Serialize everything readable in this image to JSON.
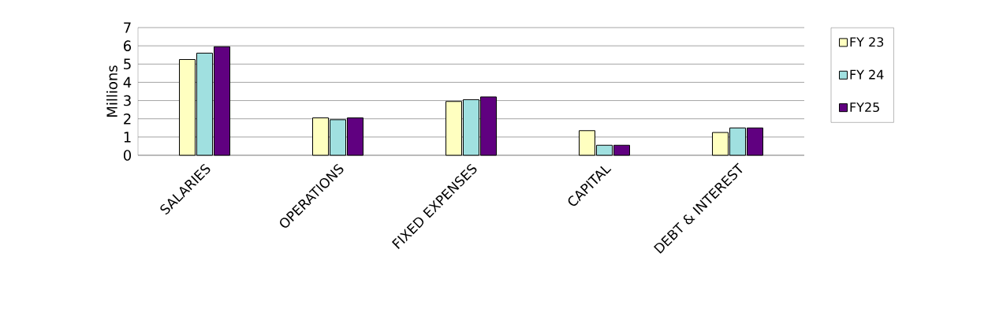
{
  "chart_data": {
    "type": "bar",
    "ylabel": "Millions",
    "categories": [
      "SALARIES",
      "OPERATIONS",
      "FIXED EXPENSES",
      "CAPITAL",
      "DEBT &  INTEREST"
    ],
    "series": [
      {
        "name": "FY 23",
        "color": "#ffffc0",
        "values": [
          5.25,
          2.05,
          2.95,
          1.35,
          1.25
        ]
      },
      {
        "name": "FY 24",
        "color": "#a0e0e0",
        "values": [
          5.6,
          1.95,
          3.05,
          0.55,
          1.5
        ]
      },
      {
        "name": "FY25",
        "color": "#600080",
        "values": [
          5.95,
          2.05,
          3.2,
          0.55,
          1.5
        ]
      }
    ],
    "ylim": [
      0,
      7
    ],
    "yticks": [
      0,
      1,
      2,
      3,
      4,
      5,
      6,
      7
    ],
    "grid": "y",
    "legend": "right"
  }
}
